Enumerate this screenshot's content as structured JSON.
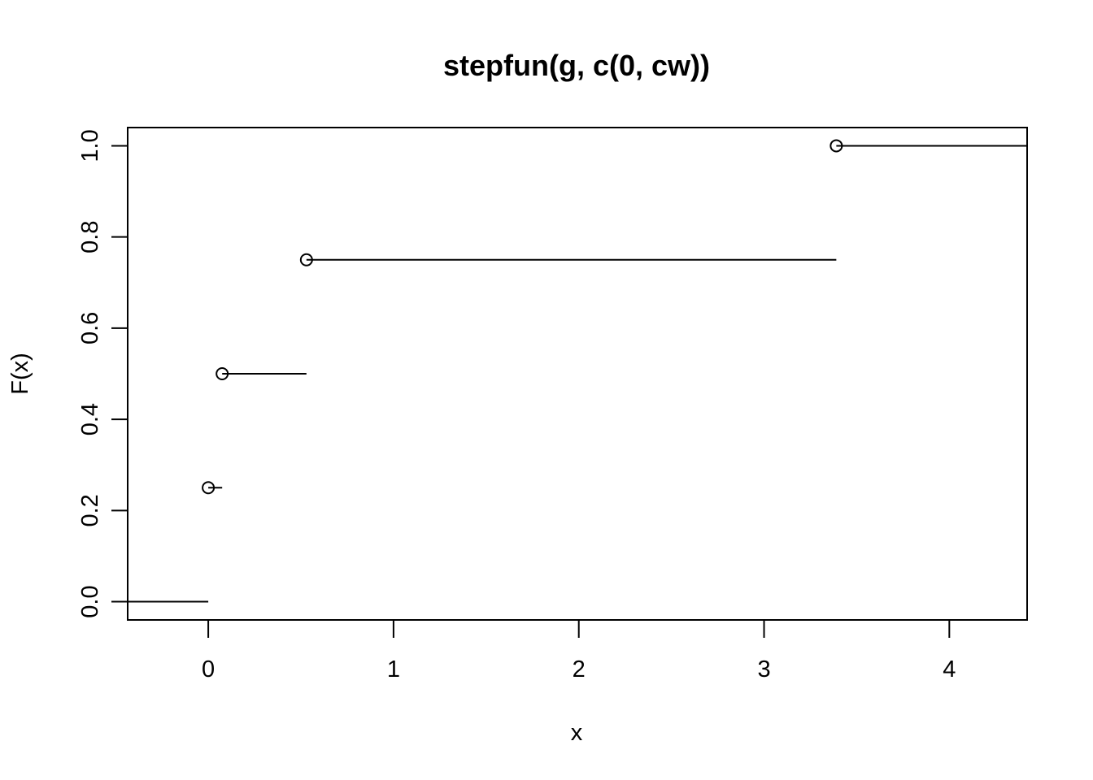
{
  "chart_data": {
    "type": "line",
    "subtype": "step",
    "title": "stepfun(g, c(0, cw))",
    "xlabel": "x",
    "ylabel": "F(x)",
    "xlim": [
      -0.435,
      4.42
    ],
    "ylim": [
      -0.04,
      1.04
    ],
    "x_ticks": [
      0,
      1,
      2,
      3,
      4
    ],
    "y_ticks": [
      0.0,
      0.2,
      0.4,
      0.6,
      0.8,
      1.0
    ],
    "x_tick_labels": [
      "0",
      "1",
      "2",
      "3",
      "4"
    ],
    "y_tick_labels": [
      "0.0",
      "0.2",
      "0.4",
      "0.6",
      "0.8",
      "1.0"
    ],
    "grid": false,
    "legend": "none",
    "segments": [
      {
        "x0": -0.5,
        "x1": 0.0,
        "y": 0.0
      },
      {
        "x0": 0.0,
        "x1": 0.075,
        "y": 0.25
      },
      {
        "x0": 0.075,
        "x1": 0.53,
        "y": 0.5
      },
      {
        "x0": 0.53,
        "x1": 3.39,
        "y": 0.75
      },
      {
        "x0": 3.39,
        "x1": 4.5,
        "y": 1.0
      }
    ],
    "points": [
      {
        "x": 0.0,
        "y": 0.25
      },
      {
        "x": 0.075,
        "y": 0.5
      },
      {
        "x": 0.53,
        "y": 0.75
      },
      {
        "x": 3.39,
        "y": 1.0
      }
    ]
  }
}
